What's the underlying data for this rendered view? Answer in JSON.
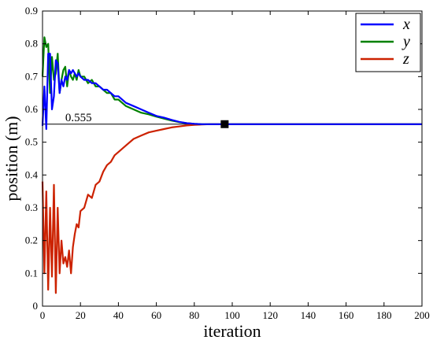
{
  "chart_data": {
    "type": "line",
    "title": "",
    "xlabel": "iteration",
    "ylabel": "position (m)",
    "xlim": [
      0,
      200
    ],
    "ylim": [
      0,
      0.9
    ],
    "xticks": [
      "0",
      "20",
      "40",
      "60",
      "80",
      "100",
      "120",
      "140",
      "160",
      "180",
      "200"
    ],
    "yticks": [
      "0",
      "0.1",
      "0.2",
      "0.3",
      "0.4",
      "0.5",
      "0.6",
      "0.7",
      "0.8",
      "0.9"
    ],
    "grid": false,
    "legend_position": "top-right",
    "reference_line": {
      "y": 0.555,
      "x_range": [
        0,
        96
      ],
      "label": "0.555"
    },
    "marker": {
      "x": 96,
      "y": 0.555,
      "shape": "square"
    },
    "series": [
      {
        "name": "x",
        "color": "#0000ff",
        "x": [
          0,
          1,
          2,
          3,
          4,
          5,
          6,
          7,
          8,
          9,
          10,
          11,
          12,
          13,
          14,
          15,
          16,
          17,
          18,
          19,
          20,
          22,
          24,
          26,
          28,
          30,
          32,
          34,
          36,
          38,
          40,
          44,
          48,
          52,
          56,
          60,
          64,
          68,
          72,
          76,
          80,
          84,
          88,
          92,
          96,
          100,
          120,
          140,
          160,
          180,
          200
        ],
        "y": [
          0.55,
          0.67,
          0.54,
          0.77,
          0.77,
          0.6,
          0.64,
          0.75,
          0.74,
          0.65,
          0.69,
          0.67,
          0.7,
          0.69,
          0.72,
          0.71,
          0.72,
          0.71,
          0.7,
          0.71,
          0.7,
          0.69,
          0.69,
          0.68,
          0.68,
          0.67,
          0.66,
          0.66,
          0.65,
          0.64,
          0.64,
          0.62,
          0.61,
          0.6,
          0.59,
          0.58,
          0.575,
          0.568,
          0.562,
          0.558,
          0.556,
          0.555,
          0.555,
          0.555,
          0.555,
          0.555,
          0.555,
          0.555,
          0.555,
          0.555,
          0.555
        ]
      },
      {
        "name": "y",
        "color": "#008000",
        "x": [
          0,
          1,
          2,
          3,
          4,
          5,
          6,
          7,
          8,
          9,
          10,
          11,
          12,
          13,
          14,
          15,
          16,
          17,
          18,
          19,
          20,
          22,
          24,
          26,
          28,
          30,
          32,
          34,
          36,
          38,
          40,
          44,
          48,
          52,
          56,
          60,
          64,
          68,
          72,
          76,
          80,
          84,
          88,
          92,
          96,
          100,
          120,
          140,
          160,
          180,
          200
        ],
        "y": [
          0.7,
          0.82,
          0.79,
          0.8,
          0.65,
          0.76,
          0.69,
          0.71,
          0.77,
          0.65,
          0.69,
          0.72,
          0.73,
          0.67,
          0.72,
          0.7,
          0.69,
          0.71,
          0.69,
          0.72,
          0.7,
          0.7,
          0.68,
          0.69,
          0.67,
          0.67,
          0.66,
          0.65,
          0.65,
          0.63,
          0.63,
          0.61,
          0.6,
          0.59,
          0.585,
          0.578,
          0.572,
          0.566,
          0.561,
          0.558,
          0.556,
          0.555,
          0.555,
          0.555,
          0.555,
          0.555,
          0.555,
          0.555,
          0.555,
          0.555,
          0.555
        ]
      },
      {
        "name": "z",
        "color": "#cc2200",
        "x": [
          0,
          1,
          2,
          3,
          4,
          5,
          6,
          7,
          8,
          9,
          10,
          11,
          12,
          13,
          14,
          15,
          16,
          17,
          18,
          19,
          20,
          22,
          24,
          26,
          28,
          30,
          32,
          34,
          36,
          38,
          40,
          44,
          48,
          52,
          56,
          60,
          64,
          68,
          72,
          76,
          80,
          84,
          88,
          92,
          96,
          100,
          120,
          140,
          160,
          180,
          200
        ],
        "y": [
          0.38,
          0.1,
          0.35,
          0.05,
          0.3,
          0.09,
          0.37,
          0.04,
          0.3,
          0.1,
          0.2,
          0.13,
          0.15,
          0.12,
          0.17,
          0.1,
          0.18,
          0.22,
          0.25,
          0.24,
          0.29,
          0.3,
          0.34,
          0.33,
          0.37,
          0.38,
          0.41,
          0.43,
          0.44,
          0.46,
          0.47,
          0.49,
          0.51,
          0.52,
          0.53,
          0.535,
          0.54,
          0.545,
          0.548,
          0.551,
          0.553,
          0.554,
          0.555,
          0.555,
          0.555,
          0.555,
          0.555,
          0.555,
          0.555,
          0.555,
          0.555
        ]
      }
    ]
  }
}
